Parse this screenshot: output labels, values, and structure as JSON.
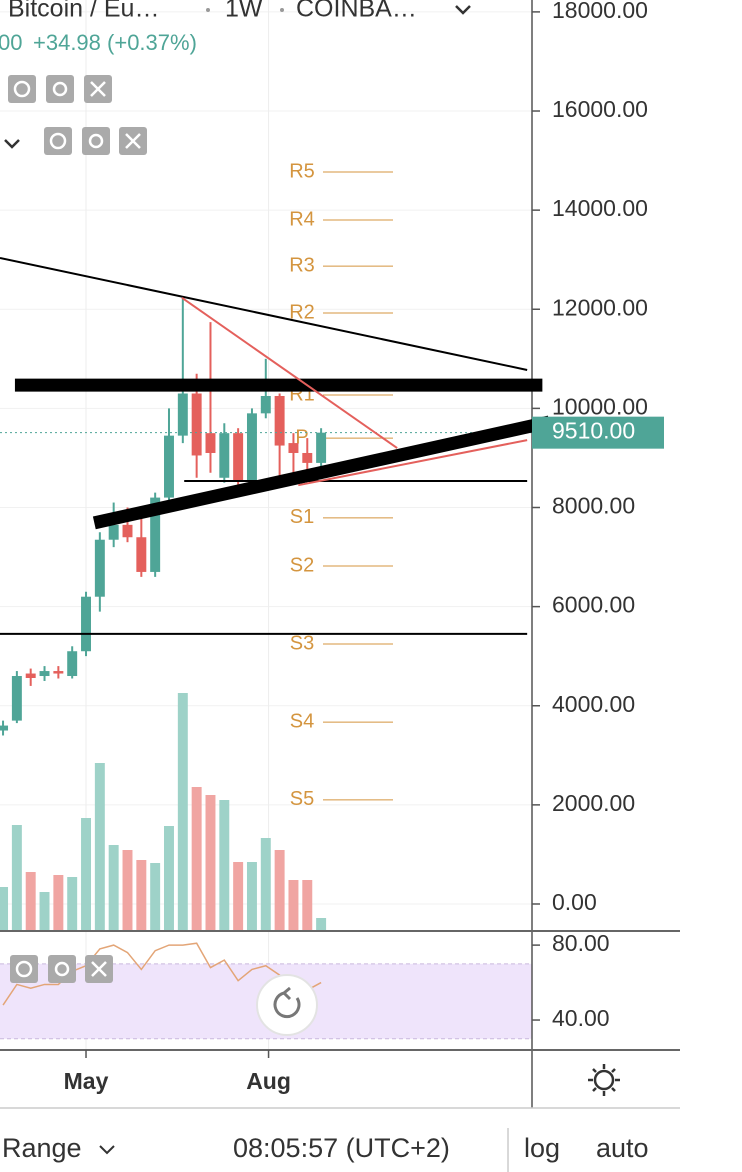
{
  "header": {
    "symbol": "Bitcoin / Eu…",
    "interval": "1W",
    "exchange": "COINBA…",
    "last_fragment": "00",
    "change": "+34.98 (+0.37%)"
  },
  "chart_data": {
    "type": "candlestick",
    "open": [
      3500,
      3700,
      4650,
      4600,
      4700,
      4600,
      5100,
      6200,
      7350,
      7650,
      7400,
      6700,
      8200,
      9450,
      10300,
      9500,
      8600,
      9500,
      8550,
      9900,
      10250,
      9300,
      9100,
      8900
    ],
    "close": [
      3600,
      4600,
      4560,
      4700,
      4650,
      5100,
      6200,
      7350,
      7650,
      7400,
      6700,
      8200,
      9450,
      10300,
      9050,
      9100,
      9500,
      8550,
      9900,
      10250,
      9250,
      9100,
      8900,
      9510
    ],
    "high": [
      3700,
      4700,
      4750,
      4800,
      4800,
      5200,
      6300,
      7500,
      8100,
      8000,
      8000,
      8300,
      10000,
      12230,
      10700,
      11740,
      9700,
      9600,
      10000,
      11000,
      10300,
      9500,
      9400,
      9600
    ],
    "low": [
      3400,
      3650,
      4400,
      4500,
      4550,
      4550,
      5000,
      5900,
      7200,
      7300,
      6600,
      6600,
      8000,
      9300,
      8600,
      8700,
      8500,
      8400,
      8500,
      9800,
      8500,
      8700,
      8600,
      8700
    ],
    "volume": [
      43,
      105,
      58,
      38,
      55,
      53,
      112,
      167,
      85,
      80,
      70,
      67,
      104,
      237,
      143,
      135,
      130,
      68,
      68,
      92,
      80,
      50,
      50,
      12
    ],
    "up_color": "#4fa597",
    "down_color": "#e4605c",
    "volume_up_color": "#9ed2c8",
    "volume_down_color": "#f0a5a2",
    "ylim": [
      -545,
      18240
    ],
    "yticks": [
      {
        "value": 0,
        "label": "0.00"
      },
      {
        "value": 2000,
        "label": "2000.00"
      },
      {
        "value": 4000,
        "label": "4000.00"
      },
      {
        "value": 6000,
        "label": "6000.00"
      },
      {
        "value": 8000,
        "label": "8000.00"
      },
      {
        "value": 10000,
        "label": "10000.00"
      },
      {
        "value": 12000,
        "label": "12000.00"
      },
      {
        "value": 14000,
        "label": "14000.00"
      },
      {
        "value": 16000,
        "label": "16000.00"
      },
      {
        "value": 18000,
        "label": "18000.00"
      }
    ],
    "xlim": [
      -0.22,
      38.25
    ],
    "xticks": [
      {
        "value": 6,
        "label": "May"
      },
      {
        "value": 19.2,
        "label": "Aug"
      }
    ],
    "last_price": {
      "value": 9510,
      "label": "9510.00"
    },
    "pivot_color": "#d4953f",
    "pivots": [
      {
        "name": "R5",
        "value": 14770
      },
      {
        "name": "R4",
        "value": 13800
      },
      {
        "name": "R3",
        "value": 12870
      },
      {
        "name": "R2",
        "value": 11925
      },
      {
        "name": "R1",
        "value": 10270
      },
      {
        "name": "P",
        "value": 9400
      },
      {
        "name": "S1",
        "value": 7790
      },
      {
        "name": "S2",
        "value": 6820
      },
      {
        "name": "S3",
        "value": 5245
      },
      {
        "name": "S4",
        "value": 3670
      },
      {
        "name": "S5",
        "value": 2100
      }
    ],
    "drawings": [
      {
        "color": "#000000",
        "style": "thick",
        "x": [
          0.86,
          39
        ],
        "y": [
          10470,
          10470
        ]
      },
      {
        "color": "#000000",
        "style": "thick",
        "x": [
          6.6,
          39.5
        ],
        "y": [
          7690,
          9725
        ]
      },
      {
        "color": "#000000",
        "style": "thin",
        "x": [
          -0.22,
          37.9
        ],
        "y": [
          13035,
          10775
        ]
      },
      {
        "color": "#000000",
        "style": "thin",
        "x": [
          -0.22,
          37.9
        ],
        "y": [
          5450,
          5450
        ]
      },
      {
        "color": "#000000",
        "style": "thin",
        "x": [
          13.1,
          37.9
        ],
        "y": [
          8535,
          8535
        ]
      },
      {
        "color": "#e4605c",
        "style": "thin",
        "x": [
          12.94,
          28.5
        ],
        "y": [
          12230,
          9200
        ]
      },
      {
        "color": "#e4605c",
        "style": "thin",
        "x": [
          21.35,
          37.9
        ],
        "y": [
          8450,
          9360
        ]
      }
    ],
    "rsi": {
      "values": [
        48,
        59,
        57,
        59,
        59,
        66,
        69,
        78,
        80,
        76,
        67,
        77,
        80,
        80,
        81,
        68,
        72,
        61,
        67,
        69,
        64,
        56,
        56,
        60
      ],
      "color": "#e3a577",
      "band": [
        30,
        70
      ],
      "band_color": "#efe4fb",
      "ylim": [
        24,
        87
      ],
      "yticks": [
        {
          "value": 80,
          "label": "80.00"
        },
        {
          "value": 40,
          "label": "40.00"
        }
      ]
    }
  },
  "footer": {
    "range": "Range",
    "time": "08:05:57 (UTC+2)",
    "log": "log",
    "auto": "auto"
  }
}
